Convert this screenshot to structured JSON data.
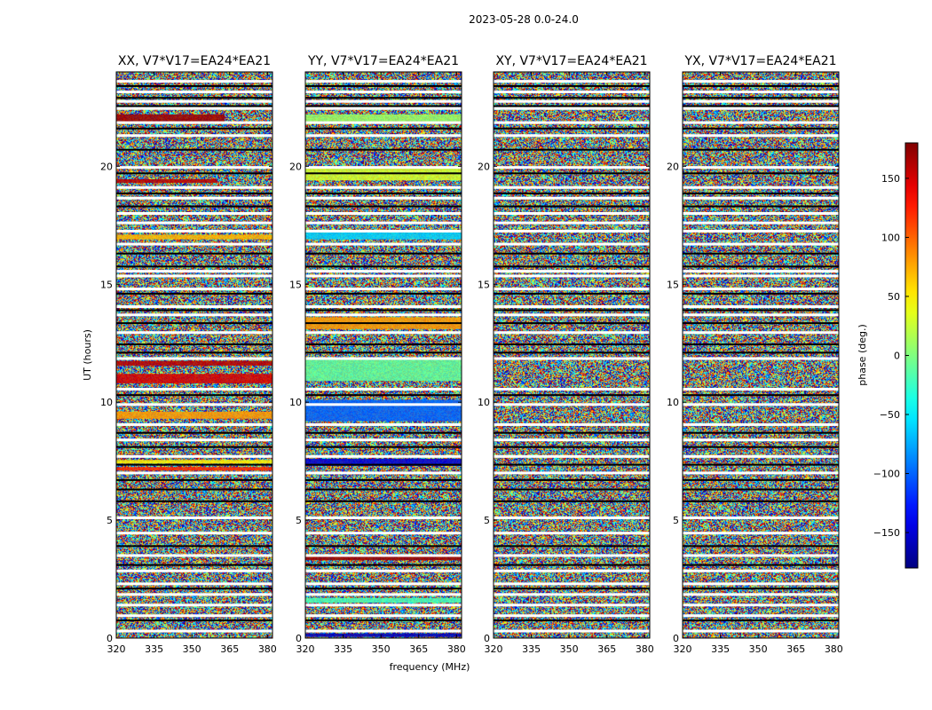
{
  "chart_data": {
    "type": "heatmap",
    "suptitle": "2023-05-28 0.0-24.0",
    "xlabel": "frequency (MHz)",
    "ylabel": "UT (hours)",
    "xlim": [
      320,
      382
    ],
    "ylim": [
      0,
      24
    ],
    "xticks": [
      320,
      335,
      350,
      365,
      380
    ],
    "yticks": [
      0,
      5,
      10,
      15,
      20
    ],
    "colorbar": {
      "label": "phase (deg.)",
      "range": [
        -180,
        180
      ],
      "ticks": [
        150,
        100,
        50,
        0,
        -50,
        -100,
        -150
      ],
      "colormap": "jet"
    },
    "panels": [
      {
        "title": "XX, V7*V17=EA24*EA21",
        "bands": [
          {
            "t0": 21.9,
            "t1": 22.2,
            "phase": 170,
            "f1": 363
          },
          {
            "t0": 19.3,
            "t1": 19.45,
            "phase": 160,
            "f1": 360
          },
          {
            "t0": 16.9,
            "t1": 17.1,
            "phase": 70
          },
          {
            "t0": 11.55,
            "t1": 11.75,
            "phase": 160
          },
          {
            "t0": 10.8,
            "t1": 11.2,
            "phase": 150
          },
          {
            "t0": 9.3,
            "t1": 9.6,
            "phase": 80
          },
          {
            "t0": 7.4,
            "t1": 7.55,
            "phase": 50
          },
          {
            "t0": 7.1,
            "t1": 7.25,
            "phase": 120
          }
        ]
      },
      {
        "title": "YY, V7*V17=EA24*EA21",
        "bands": [
          {
            "t0": 21.9,
            "t1": 22.2,
            "phase": 10
          },
          {
            "t0": 19.4,
            "t1": 20.0,
            "phase": 30
          },
          {
            "t0": 16.9,
            "t1": 17.2,
            "phase": -60
          },
          {
            "t0": 13.1,
            "t1": 13.6,
            "phase": 80
          },
          {
            "t0": 10.9,
            "t1": 11.8,
            "phase": -10
          },
          {
            "t0": 9.2,
            "t1": 10.1,
            "phase": -100
          },
          {
            "t0": 7.3,
            "t1": 7.6,
            "phase": -150
          },
          {
            "t0": 3.3,
            "t1": 3.45,
            "phase": 170
          },
          {
            "t0": 1.5,
            "t1": 1.7,
            "phase": -20
          },
          {
            "t0": 0.05,
            "t1": 0.2,
            "phase": -160
          }
        ]
      },
      {
        "title": "XY, V7*V17=EA24*EA21",
        "bands": []
      },
      {
        "title": "YX, V7*V17=EA24*EA21",
        "bands": []
      }
    ],
    "blank_rows_hours": [
      23.6,
      23.15,
      22.75,
      22.45,
      21.85,
      21.3,
      19.95,
      19.1,
      18.65,
      18.0,
      17.6,
      17.25,
      16.7,
      15.55,
      15.35,
      14.8,
      14.05,
      13.7,
      12.95,
      11.85,
      10.55,
      9.9,
      9.05,
      8.4,
      7.7,
      7.0,
      5.1,
      4.45,
      3.5,
      2.85,
      2.3,
      1.85,
      1.4,
      0.95,
      0.3
    ],
    "black_rows_hours": [
      23.4,
      22.9,
      22.55,
      21.6,
      20.7,
      19.7,
      18.85,
      18.3,
      16.3,
      15.75,
      14.6,
      13.9,
      13.35,
      12.45,
      12.1,
      10.3,
      8.7,
      8.1,
      7.35,
      6.7,
      6.3,
      5.8,
      3.9,
      3.1,
      2.1,
      0.75
    ]
  }
}
